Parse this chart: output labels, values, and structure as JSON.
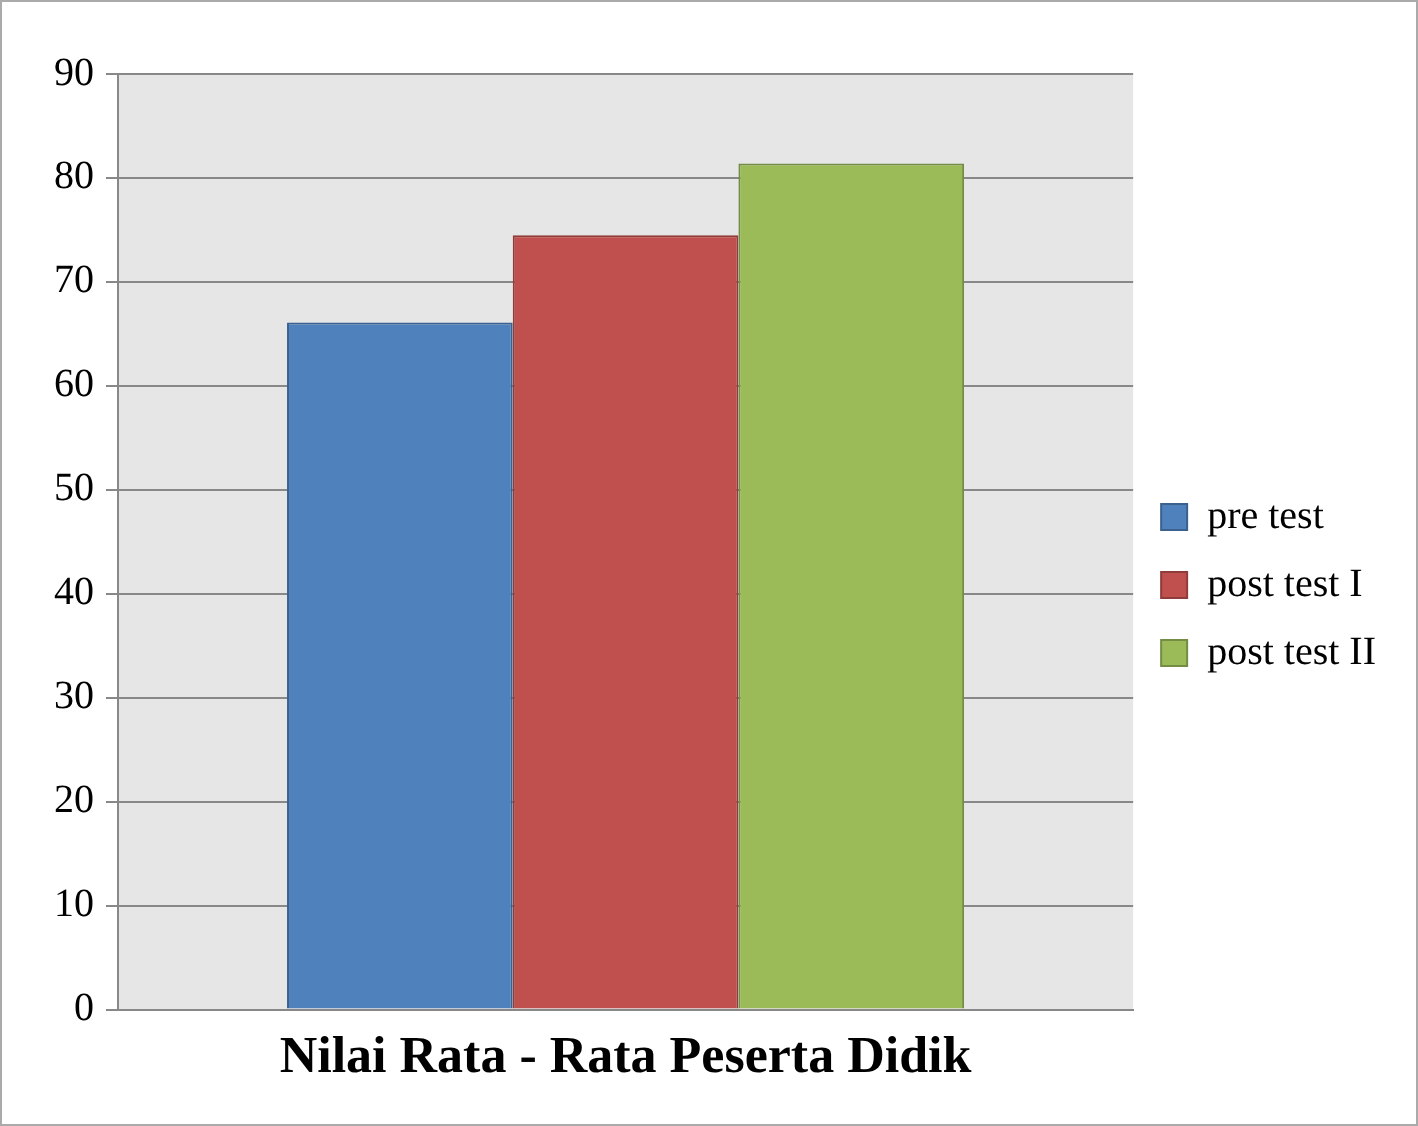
{
  "chart_data": {
    "type": "bar",
    "categories": [
      "Nilai Rata - Rata Peserta Didik"
    ],
    "series": [
      {
        "name": "pre test",
        "color": "#4f81bd",
        "values": [
          66.1
        ]
      },
      {
        "name": "post test I",
        "color": "#c0504d",
        "values": [
          74.5
        ]
      },
      {
        "name": "post test II",
        "color": "#9bbb59",
        "values": [
          81.4
        ]
      }
    ],
    "ylim": [
      0,
      90
    ],
    "yticks": [
      0,
      10,
      20,
      30,
      40,
      50,
      60,
      70,
      80,
      90
    ],
    "grid": "y",
    "legend": "right"
  }
}
